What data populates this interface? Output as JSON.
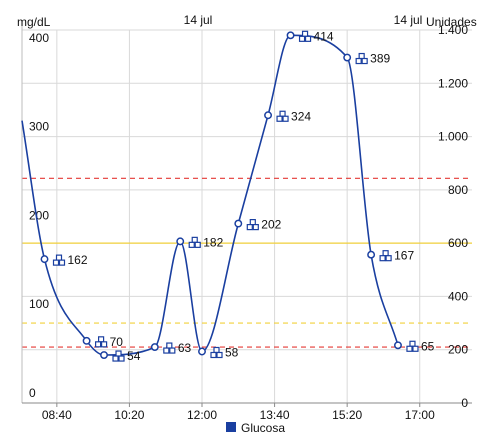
{
  "chart_data": {
    "type": "line",
    "date_label_left": "14 jul",
    "date_label_right": "14 jul",
    "left_axis": {
      "unit": "mg/dL",
      "range": [
        0,
        420
      ],
      "ticks": [
        0,
        100,
        200,
        300,
        400
      ],
      "tick_labels": [
        "0",
        "100",
        "200",
        "300",
        "400"
      ]
    },
    "right_axis": {
      "unit": "Unidades",
      "range": [
        0,
        1400
      ],
      "ticks": [
        0,
        200,
        400,
        600,
        800,
        1000,
        1200,
        1400
      ],
      "tick_labels": [
        "0",
        "200",
        "400",
        "600",
        "800",
        "1.000",
        "1.200",
        "1.400"
      ]
    },
    "x_axis": {
      "range": [
        "07:52",
        "18:12"
      ],
      "ticks": [
        "08:40",
        "10:20",
        "12:00",
        "13:40",
        "15:20",
        "17:00"
      ]
    },
    "thresholds": [
      {
        "value": 253,
        "axis": "left",
        "color": "#e53935",
        "style": "dashed"
      },
      {
        "value": 180,
        "axis": "left",
        "color": "#f2d03b",
        "style": "solid"
      },
      {
        "value": 90,
        "axis": "left",
        "color": "#f2d03b",
        "style": "dashed"
      },
      {
        "value": 63,
        "axis": "left",
        "color": "#e53935",
        "style": "dashed"
      }
    ],
    "grid": true,
    "legend": {
      "position": "bottom",
      "label": "Glucosa",
      "color": "#1a3fa0"
    },
    "series": [
      {
        "name": "Glucosa",
        "color": "#1a3fa0",
        "curve_start": {
          "x": "07:52",
          "y": 318
        },
        "points": [
          {
            "x": "08:23",
            "y": 162
          },
          {
            "x": "09:21",
            "y": 70
          },
          {
            "x": "09:45",
            "y": 54
          },
          {
            "x": "10:55",
            "y": 63
          },
          {
            "x": "11:30",
            "y": 182
          },
          {
            "x": "12:00",
            "y": 58
          },
          {
            "x": "12:50",
            "y": 202
          },
          {
            "x": "13:31",
            "y": 324
          },
          {
            "x": "14:02",
            "y": 414
          },
          {
            "x": "15:20",
            "y": 389
          },
          {
            "x": "15:53",
            "y": 167
          },
          {
            "x": "16:30",
            "y": 65
          }
        ],
        "data_labels": [
          "162",
          "70",
          "54",
          "63",
          "182",
          "58",
          "202",
          "324",
          "414",
          "389",
          "167",
          "65"
        ],
        "label_icon": "syringe-group-icon",
        "label_icon_color": "#1a3fa0"
      }
    ]
  }
}
